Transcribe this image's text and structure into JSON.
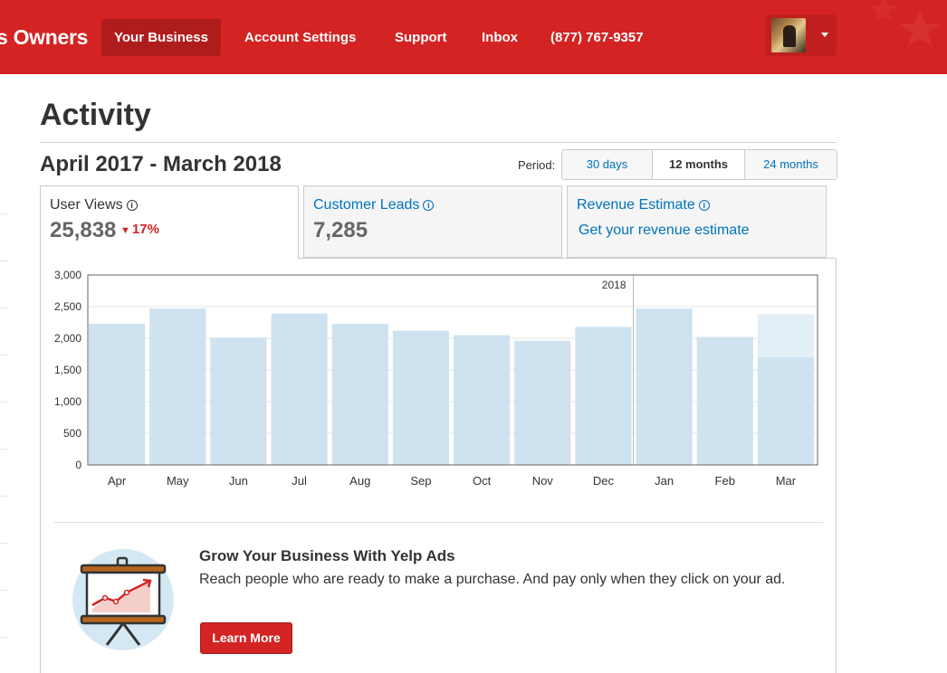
{
  "header": {
    "brand": "s Owners",
    "nav": [
      {
        "label": "Your Business",
        "active": true
      },
      {
        "label": "Account Settings",
        "active": false
      },
      {
        "label": "Support",
        "active": false
      },
      {
        "label": "Inbox",
        "active": false
      },
      {
        "label": "(877) 767-9357",
        "active": false
      }
    ],
    "accent_color": "#d32323"
  },
  "page": {
    "title": "Activity",
    "date_range": "April 2017 - March 2018"
  },
  "period": {
    "label": "Period:",
    "options": [
      "30 days",
      "12 months",
      "24 months"
    ],
    "selected": "12 months"
  },
  "metrics": {
    "user_views": {
      "title": "User Views",
      "value": "25,838",
      "delta": "17%",
      "delta_direction": "down"
    },
    "customer_leads": {
      "title": "Customer Leads",
      "value": "7,285"
    },
    "revenue": {
      "title": "Revenue Estimate",
      "link": "Get your revenue estimate"
    }
  },
  "chart_data": {
    "type": "bar",
    "categories": [
      "Apr",
      "May",
      "Jun",
      "Jul",
      "Aug",
      "Sep",
      "Oct",
      "Nov",
      "Dec",
      "Jan",
      "Feb",
      "Mar"
    ],
    "values": [
      2230,
      2470,
      2010,
      2390,
      2230,
      2120,
      2050,
      1960,
      2180,
      2470,
      2020,
      1700
    ],
    "projected_last": 2380,
    "ylim": [
      0,
      3000
    ],
    "yticks": [
      "0",
      "500",
      "1,000",
      "1,500",
      "2,000",
      "2,500",
      "3,000"
    ],
    "year_marker": {
      "label": "2018",
      "before_category": "Jan"
    },
    "bar_color": "#cfe2ef",
    "projected_color": "#e3eff7"
  },
  "promo": {
    "title": "Grow Your Business With Yelp Ads",
    "body": "Reach people who are ready to make a purchase. And pay only when they click on your ad.",
    "button": "Learn More"
  }
}
